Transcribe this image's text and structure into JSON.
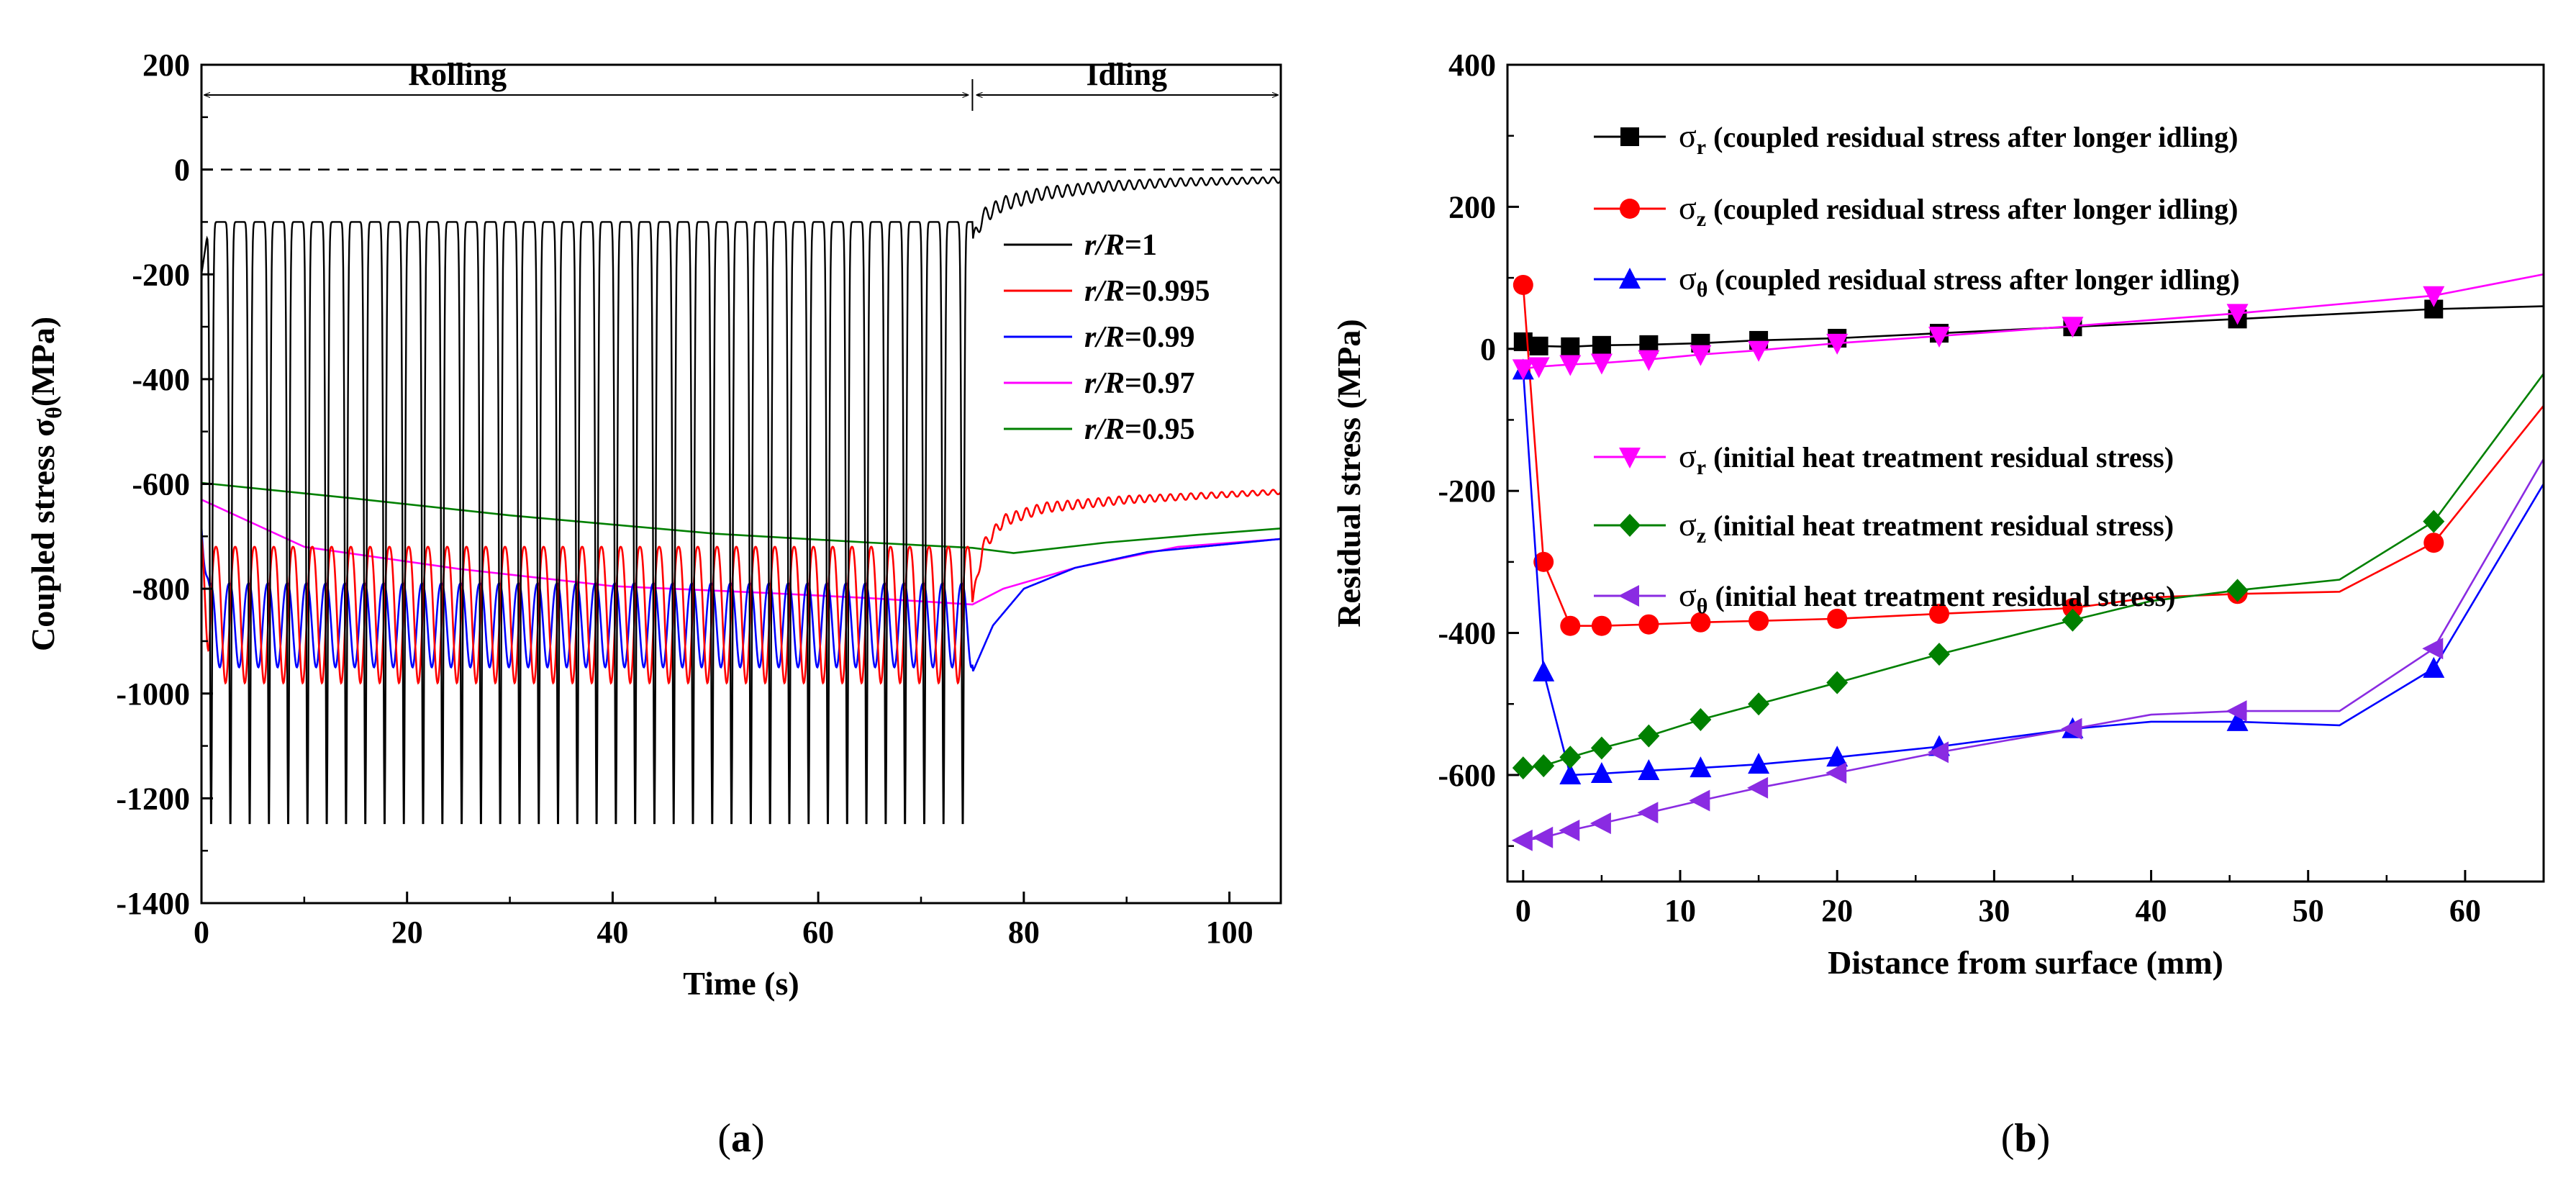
{
  "colors": {
    "black": "#000000",
    "red": "#ff0000",
    "blue": "#0000ff",
    "magenta": "#ff00ff",
    "green": "#008000",
    "violet": "#8a2be2"
  },
  "panel_a": {
    "label_open": "(",
    "label_letter": "a",
    "label_close": ")",
    "phase_rolling": "Rolling",
    "phase_idling": "Idling",
    "axis_unit": "(MPa)"
  },
  "panel_b": {
    "label_open": "(",
    "label_letter": "b",
    "label_close": ")"
  },
  "chart_data": [
    {
      "type": "line",
      "panel": "a",
      "title": "",
      "xlabel": "Time (s)",
      "ylabel_main": "Coupled stress σ",
      "ylabel_sub": "θ",
      "ylabel_unit": "(MPa)",
      "xlim": [
        0,
        105
      ],
      "ylim": [
        -1400,
        200
      ],
      "xticks": [
        0,
        20,
        40,
        60,
        80,
        100
      ],
      "yticks": [
        -1400,
        -1200,
        -1000,
        -800,
        -600,
        -400,
        -200,
        0,
        200
      ],
      "rolling_end": 75,
      "rolling_cycles": 40,
      "zero_reference": 0,
      "legend_position": "right",
      "series": [
        {
          "name": "r/R=1",
          "name_italic": "r/R",
          "name_value": "=1",
          "color": "black",
          "rolling_peak": -100,
          "rolling_trough": -1265,
          "rolling_start": -200,
          "idling_points": [
            [
              75,
              -140
            ],
            [
              76,
              -90
            ],
            [
              78,
              -65
            ],
            [
              82,
              -45
            ],
            [
              88,
              -32
            ],
            [
              95,
              -24
            ],
            [
              105,
              -20
            ]
          ],
          "idling_ripple": 15
        },
        {
          "name": "r/R=0.995",
          "name_italic": "r/R",
          "name_value": "=0.995",
          "color": "red",
          "rolling_peak": -720,
          "rolling_trough": -980,
          "rolling_start": -700,
          "idling_points": [
            [
              75,
              -830
            ],
            [
              76,
              -720
            ],
            [
              78,
              -670
            ],
            [
              82,
              -645
            ],
            [
              90,
              -630
            ],
            [
              105,
              -615
            ]
          ],
          "idling_ripple": 12
        },
        {
          "name": "r/R=0.99",
          "name_italic": "r/R",
          "name_value": "=0.99",
          "color": "blue",
          "rolling_peak": -790,
          "rolling_trough": -950,
          "rolling_start": -680,
          "idling_points": [
            [
              75,
              -960
            ],
            [
              77,
              -870
            ],
            [
              80,
              -800
            ],
            [
              85,
              -760
            ],
            [
              92,
              -730
            ],
            [
              105,
              -705
            ]
          ],
          "idling_ripple": 0
        },
        {
          "name": "r/R=0.97",
          "name_italic": "r/R",
          "name_value": "=0.97",
          "color": "magenta",
          "points": [
            [
              0,
              -630
            ],
            [
              10,
              -720
            ],
            [
              25,
              -762
            ],
            [
              40,
              -795
            ],
            [
              55,
              -808
            ],
            [
              65,
              -818
            ],
            [
              75,
              -830
            ],
            [
              78,
              -800
            ],
            [
              85,
              -760
            ],
            [
              95,
              -720
            ],
            [
              105,
              -705
            ]
          ]
        },
        {
          "name": "r/R=0.95",
          "name_italic": "r/R",
          "name_value": "=0.95",
          "color": "green",
          "points": [
            [
              0,
              -598
            ],
            [
              15,
              -628
            ],
            [
              30,
              -660
            ],
            [
              50,
              -695
            ],
            [
              65,
              -712
            ],
            [
              75,
              -722
            ],
            [
              79,
              -732
            ],
            [
              88,
              -712
            ],
            [
              97,
              -697
            ],
            [
              105,
              -685
            ]
          ]
        }
      ]
    },
    {
      "type": "line",
      "panel": "b",
      "title": "",
      "xlabel": "Distance from surface (mm)",
      "ylabel": "Residual stress (MPa)",
      "xlim": [
        -1,
        65
      ],
      "ylim": [
        -750,
        400
      ],
      "xticks": [
        0,
        10,
        20,
        30,
        40,
        50,
        60
      ],
      "yticks": [
        -600,
        -400,
        -200,
        0,
        200,
        400
      ],
      "legend_position": "top-right and middle-right",
      "series": [
        {
          "symbol": "σ",
          "sub": "r",
          "desc": "(coupled residual stress after longer idling)",
          "color": "black",
          "marker": "square",
          "points": [
            [
              0,
              10
            ],
            [
              1,
              4
            ],
            [
              3,
              3
            ],
            [
              5,
              5
            ],
            [
              8,
              6
            ],
            [
              11.3,
              8
            ],
            [
              15,
              12
            ],
            [
              20,
              15
            ],
            [
              26.5,
              22
            ],
            [
              35,
              31
            ],
            [
              45.5,
              42
            ],
            [
              58,
              56
            ],
            [
              65,
              60
            ]
          ],
          "marker_points": [
            [
              0,
              10
            ],
            [
              1,
              4
            ],
            [
              3,
              3
            ],
            [
              5,
              5
            ],
            [
              8,
              6
            ],
            [
              11.3,
              8
            ],
            [
              15,
              12
            ],
            [
              20,
              15
            ],
            [
              26.5,
              22
            ],
            [
              35,
              31
            ],
            [
              45.5,
              42
            ],
            [
              58,
              56
            ]
          ]
        },
        {
          "symbol": "σ",
          "sub": "z",
          "desc": "(coupled residual stress after longer idling)",
          "color": "red",
          "marker": "circle",
          "points": [
            [
              0,
              90
            ],
            [
              1.3,
              -300
            ],
            [
              3,
              -390
            ],
            [
              5,
              -390
            ],
            [
              8,
              -388
            ],
            [
              11.3,
              -385
            ],
            [
              15,
              -383
            ],
            [
              20,
              -380
            ],
            [
              26.5,
              -373
            ],
            [
              35,
              -365
            ],
            [
              40,
              -350
            ],
            [
              45.5,
              -345
            ],
            [
              52,
              -342
            ],
            [
              58,
              -273
            ],
            [
              65,
              -80
            ]
          ],
          "marker_points": [
            [
              0,
              90
            ],
            [
              1.3,
              -300
            ],
            [
              3,
              -390
            ],
            [
              5,
              -390
            ],
            [
              8,
              -388
            ],
            [
              11.3,
              -385
            ],
            [
              15,
              -383
            ],
            [
              20,
              -380
            ],
            [
              26.5,
              -373
            ],
            [
              35,
              -365
            ],
            [
              45.5,
              -345
            ],
            [
              58,
              -273
            ]
          ]
        },
        {
          "symbol": "σ",
          "sub": "θ",
          "desc": "(coupled residual stress after longer idling)",
          "color": "blue",
          "marker": "triangle-up",
          "points": [
            [
              0,
              -30
            ],
            [
              1.3,
              -455
            ],
            [
              3,
              -600
            ],
            [
              5,
              -598
            ],
            [
              8,
              -594
            ],
            [
              11.3,
              -590
            ],
            [
              15,
              -585
            ],
            [
              20,
              -575
            ],
            [
              26.5,
              -560
            ],
            [
              35,
              -535
            ],
            [
              40,
              -525
            ],
            [
              45.5,
              -525
            ],
            [
              52,
              -530
            ],
            [
              58,
              -450
            ],
            [
              65,
              -190
            ]
          ],
          "marker_points": [
            [
              0,
              -30
            ],
            [
              1.3,
              -455
            ],
            [
              3,
              -600
            ],
            [
              5,
              -598
            ],
            [
              8,
              -594
            ],
            [
              11.3,
              -590
            ],
            [
              15,
              -585
            ],
            [
              20,
              -575
            ],
            [
              26.5,
              -560
            ],
            [
              35,
              -535
            ],
            [
              45.5,
              -525
            ],
            [
              58,
              -450
            ]
          ]
        },
        {
          "symbol": "σ",
          "sub": "r",
          "desc": "(initial heat treatment residual stress)",
          "color": "magenta",
          "marker": "triangle-down",
          "points": [
            [
              0,
              -28
            ],
            [
              1,
              -25
            ],
            [
              3,
              -22
            ],
            [
              5,
              -20
            ],
            [
              8,
              -15
            ],
            [
              11.3,
              -8
            ],
            [
              15,
              -2
            ],
            [
              20,
              8
            ],
            [
              26.5,
              18
            ],
            [
              35,
              32
            ],
            [
              45.5,
              50
            ],
            [
              58,
              75
            ],
            [
              65,
              105
            ]
          ],
          "marker_points": [
            [
              0,
              -28
            ],
            [
              1,
              -25
            ],
            [
              3,
              -22
            ],
            [
              5,
              -20
            ],
            [
              8,
              -15
            ],
            [
              11.3,
              -8
            ],
            [
              15,
              -2
            ],
            [
              20,
              8
            ],
            [
              26.5,
              18
            ],
            [
              35,
              32
            ],
            [
              45.5,
              50
            ],
            [
              58,
              75
            ]
          ]
        },
        {
          "symbol": "σ",
          "sub": "z",
          "desc": "(initial heat treatment residual stress)",
          "color": "green",
          "marker": "diamond",
          "points": [
            [
              0,
              -590
            ],
            [
              1.3,
              -587
            ],
            [
              3,
              -575
            ],
            [
              5,
              -562
            ],
            [
              8,
              -545
            ],
            [
              11.3,
              -522
            ],
            [
              15,
              -500
            ],
            [
              20,
              -470
            ],
            [
              26.5,
              -430
            ],
            [
              35,
              -382
            ],
            [
              40,
              -355
            ],
            [
              45.5,
              -340
            ],
            [
              52,
              -325
            ],
            [
              58,
              -243
            ],
            [
              65,
              -35
            ]
          ],
          "marker_points": [
            [
              0,
              -590
            ],
            [
              1.3,
              -587
            ],
            [
              3,
              -575
            ],
            [
              5,
              -562
            ],
            [
              8,
              -545
            ],
            [
              11.3,
              -522
            ],
            [
              15,
              -500
            ],
            [
              20,
              -470
            ],
            [
              26.5,
              -430
            ],
            [
              35,
              -382
            ],
            [
              45.5,
              -340
            ],
            [
              58,
              -243
            ]
          ]
        },
        {
          "symbol": "σ",
          "sub": "θ",
          "desc": "(initial heat treatment residual stress)",
          "color": "violet",
          "marker": "triangle-left",
          "points": [
            [
              0,
              -692
            ],
            [
              1.3,
              -688
            ],
            [
              3,
              -678
            ],
            [
              5,
              -668
            ],
            [
              8,
              -653
            ],
            [
              11.3,
              -636
            ],
            [
              15,
              -618
            ],
            [
              20,
              -597
            ],
            [
              26.5,
              -568
            ],
            [
              35,
              -535
            ],
            [
              40,
              -515
            ],
            [
              45.5,
              -510
            ],
            [
              52,
              -510
            ],
            [
              58,
              -422
            ],
            [
              65,
              -155
            ]
          ],
          "marker_points": [
            [
              0,
              -692
            ],
            [
              1.3,
              -688
            ],
            [
              3,
              -678
            ],
            [
              5,
              -668
            ],
            [
              8,
              -653
            ],
            [
              11.3,
              -636
            ],
            [
              15,
              -618
            ],
            [
              20,
              -597
            ],
            [
              26.5,
              -568
            ],
            [
              35,
              -535
            ],
            [
              45.5,
              -510
            ],
            [
              58,
              -422
            ]
          ]
        }
      ]
    }
  ]
}
